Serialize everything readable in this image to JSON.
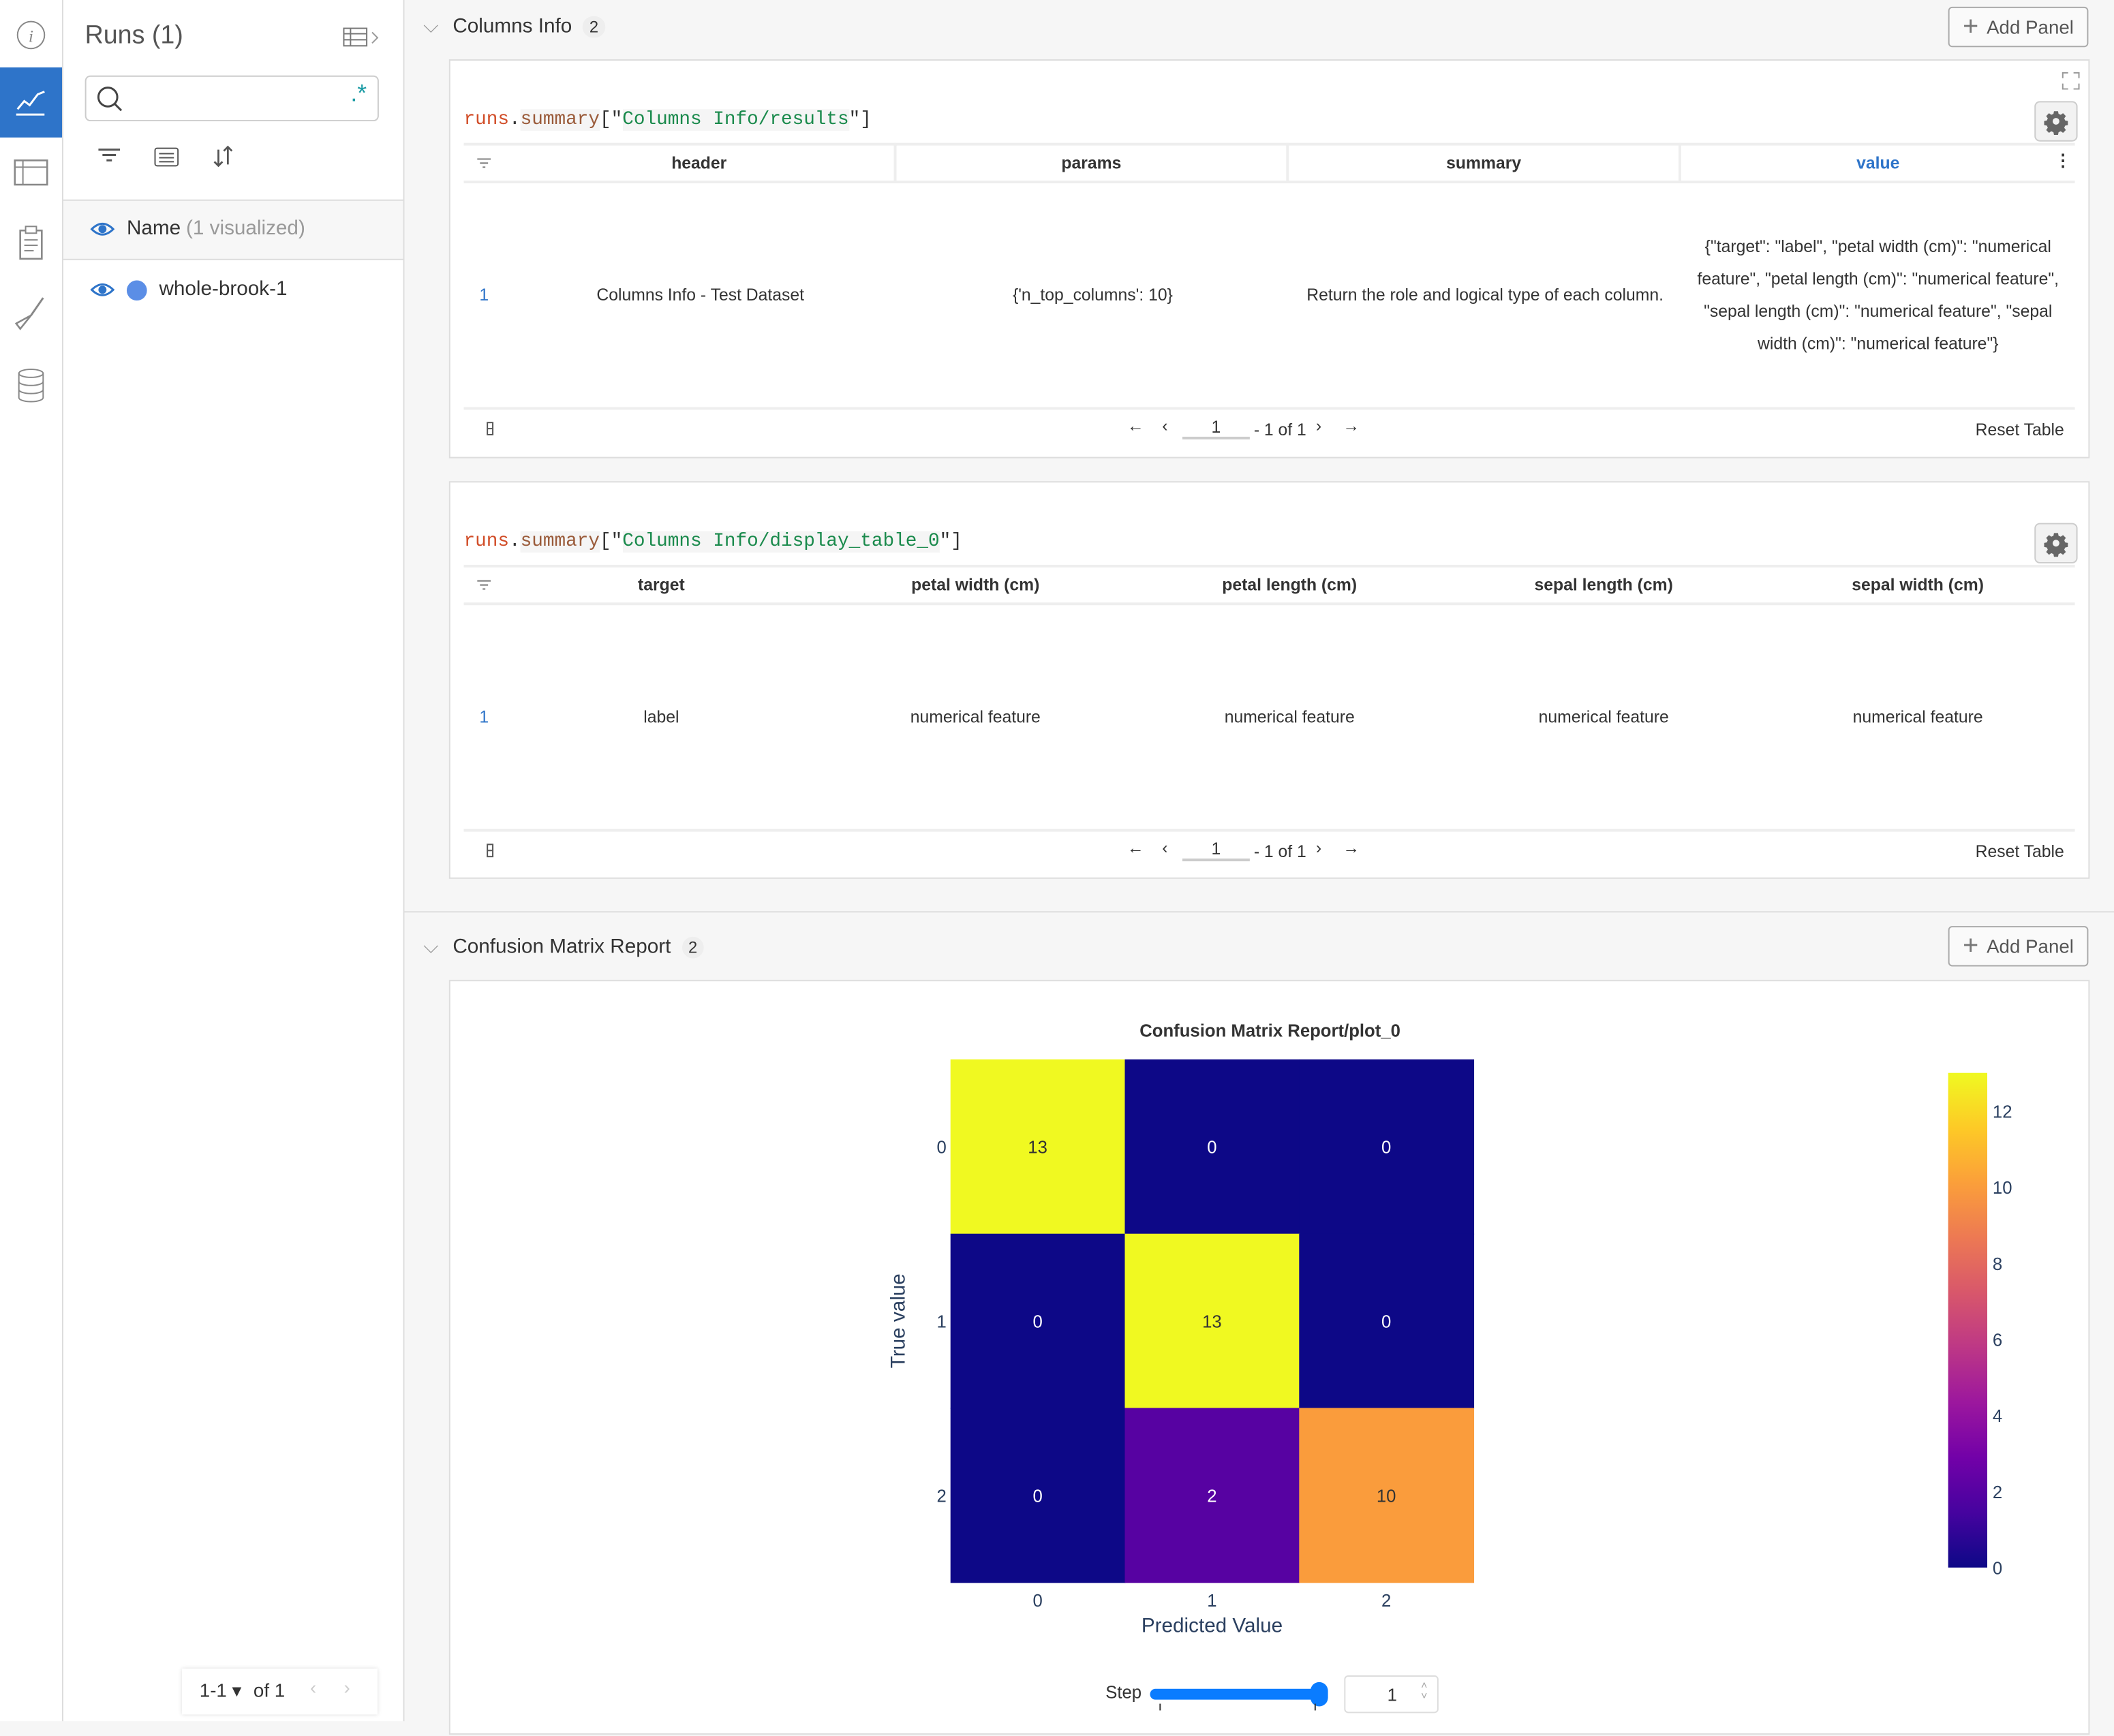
{
  "colors": {
    "accent": "#2e74c9",
    "run_color": "#5b8ee6",
    "link": "#2e74c9",
    "slider": "#0a7cff"
  },
  "iconbar": {
    "items": [
      {
        "icon": "info-icon"
      },
      {
        "icon": "chart-line-icon",
        "active": true
      },
      {
        "icon": "table-icon"
      },
      {
        "icon": "clipboard-icon"
      },
      {
        "icon": "brush-icon"
      },
      {
        "icon": "database-icon"
      }
    ]
  },
  "runs": {
    "title": "Runs (1)",
    "search": {
      "value": "",
      "placeholder": "",
      "regex_label": ".*"
    },
    "name_header": "Name",
    "name_header_sub": "(1 visualized)",
    "items": [
      {
        "name": "whole-brook-1"
      }
    ],
    "pagination": {
      "range": "1-1",
      "of": "of 1"
    }
  },
  "sections": [
    {
      "title": "Columns Info",
      "count": "2",
      "add_panel": "Add Panel",
      "panels": [
        {
          "code": {
            "obj": "runs",
            "dot": ".",
            "attr": "summary",
            "open": "[\"",
            "key": "Columns Info/results",
            "close": "\"]"
          },
          "columns": [
            "header",
            "params",
            "summary",
            "value"
          ],
          "rows": [
            {
              "index": "1",
              "cells": [
                "Columns Info - Test Dataset",
                "{'n_top_columns': 10}",
                "Return the role and logical type of each column.",
                "{\"target\": \"label\", \"petal width (cm)\": \"numerical feature\", \"petal length (cm)\": \"numerical feature\", \"sepal length (cm)\": \"numerical feature\", \"sepal width (cm)\": \"numerical feature\"}"
              ]
            }
          ],
          "footer": {
            "page": "1",
            "of": "- 1 of 1",
            "reset": "Reset Table"
          }
        },
        {
          "code": {
            "obj": "runs",
            "dot": ".",
            "attr": "summary",
            "open": "[\"",
            "key": "Columns Info/display_table_0",
            "close": "\"]"
          },
          "columns": [
            "target",
            "petal width (cm)",
            "petal length (cm)",
            "sepal length (cm)",
            "sepal width (cm)"
          ],
          "rows": [
            {
              "index": "1",
              "cells": [
                "label",
                "numerical feature",
                "numerical feature",
                "numerical feature",
                "numerical feature"
              ]
            }
          ],
          "footer": {
            "page": "1",
            "of": "- 1 of 1",
            "reset": "Reset Table"
          }
        }
      ]
    },
    {
      "title": "Confusion Matrix Report",
      "count": "2",
      "add_panel": "Add Panel"
    }
  ],
  "chart_data": {
    "type": "heatmap",
    "title": "Confusion Matrix Report/plot_0",
    "xlabel": "Predicted Value",
    "ylabel": "True value",
    "x_categories": [
      "0",
      "1",
      "2"
    ],
    "y_categories": [
      "0",
      "1",
      "2"
    ],
    "z": [
      [
        13,
        0,
        0
      ],
      [
        0,
        13,
        0
      ],
      [
        0,
        2,
        10
      ]
    ],
    "colorscale": "plasma",
    "zrange": [
      0,
      13
    ],
    "colorbar_ticks": [
      0,
      2,
      4,
      6,
      8,
      10,
      12
    ]
  },
  "step": {
    "label": "Step",
    "value": "1",
    "slider_fraction": 1.0
  }
}
